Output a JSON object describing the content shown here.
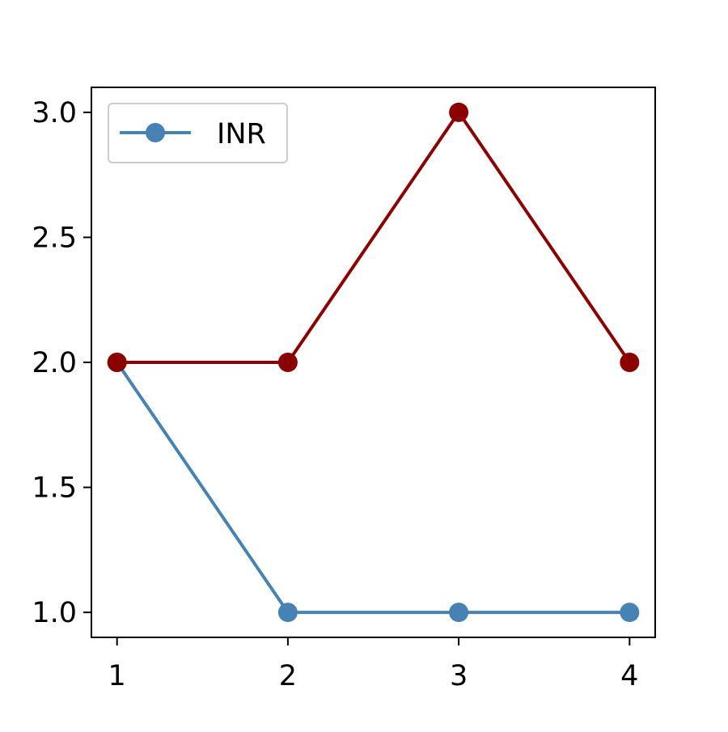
{
  "chart_data": {
    "type": "line",
    "title": "",
    "xlabel": "",
    "ylabel": "",
    "x": [
      1,
      2,
      3,
      4
    ],
    "xlim": [
      0.85,
      4.15
    ],
    "ylim": [
      0.9,
      3.1
    ],
    "x_ticks": [
      1,
      2,
      3,
      4
    ],
    "x_tick_labels": [
      "1",
      "2",
      "3",
      "4"
    ],
    "y_ticks": [
      1.0,
      1.5,
      2.0,
      2.5,
      3.0
    ],
    "y_tick_labels": [
      "1.0",
      "1.5",
      "2.0",
      "2.5",
      "3.0"
    ],
    "grid": false,
    "legend_position": "top-left",
    "series": [
      {
        "name": "INR",
        "values": [
          2,
          1,
          1,
          1
        ],
        "color": "#4682b4",
        "marker": "circle",
        "in_legend": true
      },
      {
        "values": [
          2,
          2,
          3,
          2
        ],
        "color": "#8b0000",
        "marker": "circle",
        "in_legend": false
      }
    ]
  }
}
